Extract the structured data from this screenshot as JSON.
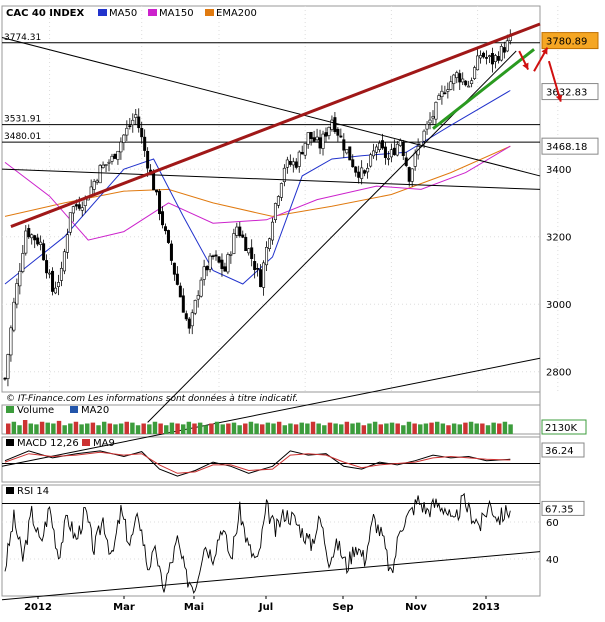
{
  "header": {
    "index_name": "CAC 40 INDEX",
    "legend": [
      {
        "name": "MA50",
        "color": "#2233cc"
      },
      {
        "name": "MA150",
        "color": "#cc22cc"
      },
      {
        "name": "EMA200",
        "color": "#e07a10"
      }
    ]
  },
  "disclaimer": "© IT-Finance.com      Les informations sont données à titre indicatif.",
  "chart_data": [
    {
      "type": "candlestick",
      "name": "price",
      "ylim": [
        2740,
        3830
      ],
      "yticks": [
        2800,
        3000,
        3200,
        3400
      ],
      "levels": [
        {
          "label": "3774.31",
          "value": 3774.31
        },
        {
          "label": "3531.91",
          "value": 3531.91
        },
        {
          "label": "3480.01",
          "value": 3480.01
        }
      ],
      "price_tags": [
        {
          "label": "3780.89",
          "value": 3780.89,
          "bg": "#f5a623",
          "fg": "#000000",
          "border": "#c07000"
        },
        {
          "label": "3632.83",
          "value": 3632.83,
          "bg": "#ffffff",
          "fg": "#2233cc",
          "border": "#888888"
        },
        {
          "label": "3468.18",
          "value": 3468.18,
          "bg": "#ffffff",
          "fg": "#e07a10",
          "border": "#888888"
        }
      ],
      "anchors": [
        [
          0,
          2780
        ],
        [
          3,
          3000
        ],
        [
          7,
          3220
        ],
        [
          12,
          3180
        ],
        [
          16,
          3040
        ],
        [
          19,
          3090
        ],
        [
          22,
          3280
        ],
        [
          27,
          3310
        ],
        [
          32,
          3400
        ],
        [
          36,
          3430
        ],
        [
          40,
          3500
        ],
        [
          44,
          3560
        ],
        [
          48,
          3420
        ],
        [
          52,
          3280
        ],
        [
          56,
          3130
        ],
        [
          60,
          2990
        ],
        [
          62,
          2920
        ],
        [
          66,
          3080
        ],
        [
          70,
          3140
        ],
        [
          74,
          3100
        ],
        [
          78,
          3230
        ],
        [
          82,
          3160
        ],
        [
          86,
          3070
        ],
        [
          90,
          3260
        ],
        [
          94,
          3410
        ],
        [
          98,
          3420
        ],
        [
          102,
          3500
        ],
        [
          106,
          3470
        ],
        [
          110,
          3550
        ],
        [
          114,
          3470
        ],
        [
          118,
          3400
        ],
        [
          121,
          3380
        ],
        [
          125,
          3470
        ],
        [
          129,
          3430
        ],
        [
          133,
          3490
        ],
        [
          136,
          3380
        ],
        [
          140,
          3490
        ],
        [
          144,
          3560
        ],
        [
          148,
          3640
        ],
        [
          152,
          3680
        ],
        [
          156,
          3650
        ],
        [
          160,
          3740
        ],
        [
          164,
          3720
        ],
        [
          168,
          3760
        ],
        [
          170,
          3780
        ]
      ],
      "ma50": [
        [
          0,
          3060
        ],
        [
          20,
          3200
        ],
        [
          40,
          3400
        ],
        [
          50,
          3430
        ],
        [
          60,
          3260
        ],
        [
          70,
          3100
        ],
        [
          80,
          3060
        ],
        [
          90,
          3140
        ],
        [
          100,
          3380
        ],
        [
          110,
          3430
        ],
        [
          120,
          3440
        ],
        [
          135,
          3450
        ],
        [
          150,
          3530
        ],
        [
          170,
          3633
        ]
      ],
      "ma150": [
        [
          0,
          3420
        ],
        [
          15,
          3320
        ],
        [
          28,
          3190
        ],
        [
          40,
          3215
        ],
        [
          55,
          3300
        ],
        [
          70,
          3240
        ],
        [
          88,
          3250
        ],
        [
          105,
          3310
        ],
        [
          125,
          3350
        ],
        [
          140,
          3340
        ],
        [
          155,
          3390
        ],
        [
          170,
          3468
        ]
      ],
      "ema200": [
        [
          0,
          3260
        ],
        [
          20,
          3300
        ],
        [
          40,
          3335
        ],
        [
          55,
          3340
        ],
        [
          70,
          3300
        ],
        [
          90,
          3260
        ],
        [
          110,
          3290
        ],
        [
          130,
          3325
        ],
        [
          150,
          3390
        ],
        [
          170,
          3468
        ]
      ],
      "trendlines": [
        {
          "color": "#000000",
          "width": 1,
          "from": [
            -1,
            3790
          ],
          "to": [
            180,
            3380
          ]
        },
        {
          "color": "#000000",
          "width": 1,
          "from": [
            -1,
            3400
          ],
          "to": [
            180,
            3340
          ]
        },
        {
          "color": "#000000",
          "width": 1,
          "from": [
            -1,
            2520
          ],
          "to": [
            180,
            2840
          ]
        },
        {
          "color": "#000000",
          "width": 1,
          "from": [
            48,
            2650
          ],
          "to": [
            172,
            3750
          ]
        },
        {
          "color": "#a01818",
          "width": 3,
          "from": [
            2,
            3230
          ],
          "to": [
            180,
            3830
          ]
        },
        {
          "color": "#2a9a20",
          "width": 3,
          "from": [
            144,
            3520
          ],
          "to": [
            178,
            3755
          ]
        }
      ]
    },
    {
      "type": "bar",
      "name": "Volume",
      "series": [
        "Volume",
        "MA20"
      ],
      "last_value_label": "2130K",
      "bars": [
        0.6,
        0.7,
        0.5,
        0.8,
        0.6,
        0.55,
        0.7,
        0.65,
        0.6,
        0.75,
        0.5,
        0.6,
        0.7,
        0.55,
        0.6,
        0.65,
        0.5,
        0.7,
        0.6,
        0.55,
        0.6,
        0.7,
        0.65,
        0.5,
        0.6,
        0.55,
        0.7,
        0.6,
        0.5,
        0.65,
        0.6,
        0.55,
        0.7,
        0.6,
        0.65,
        0.5,
        0.6,
        0.7,
        0.55,
        0.6,
        0.65,
        0.5,
        0.6,
        0.7,
        0.6,
        0.55,
        0.65,
        0.6,
        0.7,
        0.5,
        0.6,
        0.55,
        0.65,
        0.6,
        0.7,
        0.6,
        0.5,
        0.65,
        0.6,
        0.55,
        0.7,
        0.6,
        0.65,
        0.5,
        0.6,
        0.7,
        0.55,
        0.6,
        0.65,
        0.6,
        0.5,
        0.7,
        0.6,
        0.55,
        0.6,
        0.65,
        0.7,
        0.6,
        0.5,
        0.6,
        0.55,
        0.65,
        0.7,
        0.6,
        0.6,
        0.5,
        0.65,
        0.6,
        0.7,
        0.55
      ]
    },
    {
      "type": "line",
      "name": "MACD 12,26 - MA9",
      "series": [
        "MACD 12,26",
        "MA9"
      ],
      "last_value_label": "36.24",
      "macd": [
        [
          0,
          0.2
        ],
        [
          8,
          0.9
        ],
        [
          16,
          0.4
        ],
        [
          24,
          0.7
        ],
        [
          32,
          0.9
        ],
        [
          40,
          0.5
        ],
        [
          46,
          0.85
        ],
        [
          52,
          -0.4
        ],
        [
          58,
          -0.9
        ],
        [
          64,
          -0.5
        ],
        [
          70,
          0.1
        ],
        [
          76,
          -0.2
        ],
        [
          82,
          -0.7
        ],
        [
          90,
          -0.2
        ],
        [
          96,
          0.9
        ],
        [
          102,
          0.6
        ],
        [
          108,
          0.7
        ],
        [
          114,
          -0.2
        ],
        [
          120,
          -0.4
        ],
        [
          126,
          0.1
        ],
        [
          132,
          -0.1
        ],
        [
          138,
          0.2
        ],
        [
          144,
          0.6
        ],
        [
          150,
          0.4
        ],
        [
          156,
          0.5
        ],
        [
          162,
          0.2
        ],
        [
          170,
          0.3
        ]
      ],
      "signal": [
        [
          0,
          0.1
        ],
        [
          8,
          0.7
        ],
        [
          16,
          0.5
        ],
        [
          24,
          0.6
        ],
        [
          32,
          0.8
        ],
        [
          40,
          0.6
        ],
        [
          46,
          0.7
        ],
        [
          52,
          -0.1
        ],
        [
          58,
          -0.7
        ],
        [
          64,
          -0.6
        ],
        [
          70,
          -0.1
        ],
        [
          76,
          -0.1
        ],
        [
          82,
          -0.5
        ],
        [
          90,
          -0.4
        ],
        [
          96,
          0.6
        ],
        [
          102,
          0.7
        ],
        [
          108,
          0.6
        ],
        [
          114,
          0.1
        ],
        [
          120,
          -0.3
        ],
        [
          126,
          -0.1
        ],
        [
          132,
          0.0
        ],
        [
          138,
          0.1
        ],
        [
          144,
          0.4
        ],
        [
          150,
          0.5
        ],
        [
          156,
          0.4
        ],
        [
          162,
          0.3
        ],
        [
          170,
          0.25
        ]
      ]
    },
    {
      "type": "line",
      "name": "RSI 14",
      "last_value_label": "67.35",
      "ylim": [
        20,
        80
      ],
      "yticks": [
        40,
        60
      ],
      "level_line": 70,
      "rsi": [
        [
          0,
          35
        ],
        [
          3,
          62
        ],
        [
          6,
          40
        ],
        [
          9,
          65
        ],
        [
          12,
          48
        ],
        [
          15,
          68
        ],
        [
          18,
          42
        ],
        [
          21,
          63
        ],
        [
          24,
          50
        ],
        [
          27,
          66
        ],
        [
          30,
          45
        ],
        [
          33,
          62
        ],
        [
          36,
          40
        ],
        [
          39,
          66
        ],
        [
          42,
          48
        ],
        [
          45,
          64
        ],
        [
          48,
          36
        ],
        [
          51,
          44
        ],
        [
          53,
          23
        ],
        [
          56,
          38
        ],
        [
          58,
          50
        ],
        [
          61,
          30
        ],
        [
          64,
          25
        ],
        [
          67,
          48
        ],
        [
          70,
          42
        ],
        [
          73,
          58
        ],
        [
          76,
          40
        ],
        [
          79,
          66
        ],
        [
          82,
          46
        ],
        [
          85,
          38
        ],
        [
          88,
          68
        ],
        [
          91,
          55
        ],
        [
          94,
          65
        ],
        [
          97,
          62
        ],
        [
          100,
          55
        ],
        [
          103,
          48
        ],
        [
          106,
          62
        ],
        [
          109,
          40
        ],
        [
          112,
          48
        ],
        [
          115,
          36
        ],
        [
          118,
          48
        ],
        [
          121,
          40
        ],
        [
          124,
          62
        ],
        [
          127,
          52
        ],
        [
          130,
          30
        ],
        [
          133,
          58
        ],
        [
          136,
          64
        ],
        [
          139,
          72
        ],
        [
          142,
          66
        ],
        [
          145,
          70
        ],
        [
          148,
          68
        ],
        [
          151,
          58
        ],
        [
          154,
          72
        ],
        [
          157,
          64
        ],
        [
          160,
          58
        ],
        [
          163,
          70
        ],
        [
          166,
          62
        ],
        [
          170,
          67
        ]
      ],
      "trendline": {
        "from": [
          -1,
          18
        ],
        "to": [
          180,
          44
        ]
      }
    }
  ],
  "x_axis": {
    "labels": [
      {
        "label": "2012",
        "x": 15
      },
      {
        "label": "Mar",
        "x": 46
      },
      {
        "label": "Mai",
        "x": 72
      },
      {
        "label": "Jul",
        "x": 101
      },
      {
        "label": "Sep",
        "x": 130
      },
      {
        "label": "Nov",
        "x": 159
      },
      {
        "label": "2013",
        "x": 186
      }
    ]
  },
  "arrows": [
    {
      "name": "arrow-down-1",
      "color": "#d01010"
    },
    {
      "name": "arrow-down-2",
      "color": "#d01010"
    },
    {
      "name": "arrow-up",
      "color": "#d01010"
    }
  ]
}
